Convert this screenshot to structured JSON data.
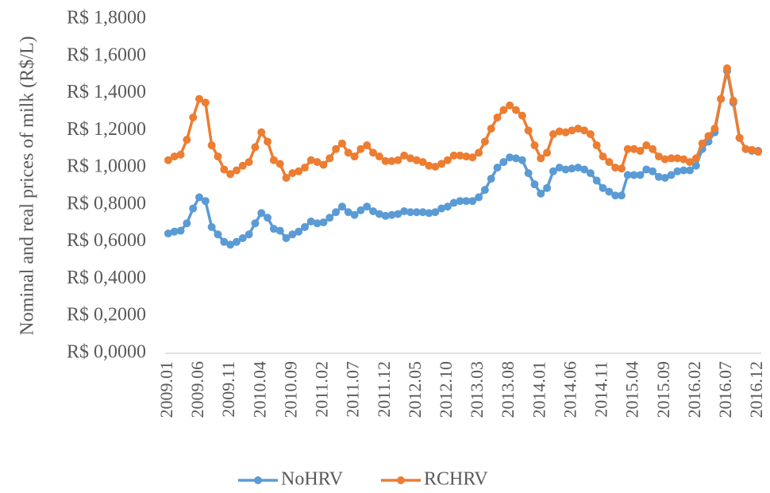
{
  "chart_data": {
    "type": "line",
    "y_label": "Nominal and real prices of milk (R$/L)",
    "categories": [
      "2009.01",
      null,
      null,
      null,
      null,
      "2009.06",
      null,
      null,
      null,
      null,
      "2009.11",
      null,
      null,
      null,
      null,
      "2010.04",
      null,
      null,
      null,
      null,
      "2010.09",
      null,
      null,
      null,
      null,
      "2011.02",
      null,
      null,
      null,
      null,
      "2011.07",
      null,
      null,
      null,
      null,
      "2011.12",
      null,
      null,
      null,
      null,
      "2012.05",
      null,
      null,
      null,
      null,
      "2012.10",
      null,
      null,
      null,
      null,
      "2013.03",
      null,
      null,
      null,
      null,
      "2013.08",
      null,
      null,
      null,
      null,
      "2014.01",
      null,
      null,
      null,
      null,
      "2014.06",
      null,
      null,
      null,
      null,
      "2014.11",
      null,
      null,
      null,
      null,
      "2015.04",
      null,
      null,
      null,
      null,
      "2015.09",
      null,
      null,
      null,
      null,
      "2016.02",
      null,
      null,
      null,
      null,
      "2016.07",
      null,
      null,
      null,
      null,
      "2016.12"
    ],
    "series": [
      {
        "name": "NoHRV",
        "color": "#5b9bd5",
        "values": [
          0.645,
          0.655,
          0.66,
          0.7,
          0.78,
          0.84,
          0.82,
          0.68,
          0.64,
          0.6,
          0.585,
          0.6,
          0.62,
          0.64,
          0.7,
          0.755,
          0.73,
          0.67,
          0.66,
          0.62,
          0.64,
          0.655,
          0.68,
          0.71,
          0.7,
          0.705,
          0.73,
          0.76,
          0.79,
          0.76,
          0.745,
          0.77,
          0.79,
          0.765,
          0.75,
          0.74,
          0.745,
          0.75,
          0.765,
          0.76,
          0.76,
          0.76,
          0.755,
          0.76,
          0.78,
          0.79,
          0.81,
          0.82,
          0.82,
          0.82,
          0.84,
          0.88,
          0.94,
          1.0,
          1.03,
          1.055,
          1.05,
          1.04,
          0.97,
          0.91,
          0.86,
          0.89,
          0.98,
          1.0,
          0.99,
          0.995,
          1.0,
          0.99,
          0.97,
          0.93,
          0.89,
          0.87,
          0.85,
          0.85,
          0.96,
          0.96,
          0.96,
          0.99,
          0.98,
          0.95,
          0.945,
          0.96,
          0.98,
          0.985,
          0.985,
          1.01,
          1.1,
          1.14,
          1.19,
          1.37,
          1.52,
          1.35,
          1.16,
          1.1,
          1.09,
          1.09
        ]
      },
      {
        "name": "RCHRV",
        "color": "#ed7d31",
        "values": [
          1.04,
          1.06,
          1.07,
          1.15,
          1.27,
          1.37,
          1.35,
          1.12,
          1.06,
          0.99,
          0.965,
          0.985,
          1.01,
          1.03,
          1.11,
          1.19,
          1.14,
          1.04,
          1.02,
          0.945,
          0.97,
          0.98,
          1.0,
          1.04,
          1.03,
          1.015,
          1.05,
          1.1,
          1.13,
          1.08,
          1.06,
          1.1,
          1.12,
          1.08,
          1.06,
          1.035,
          1.035,
          1.04,
          1.065,
          1.05,
          1.04,
          1.03,
          1.01,
          1.005,
          1.02,
          1.04,
          1.065,
          1.065,
          1.06,
          1.055,
          1.08,
          1.14,
          1.21,
          1.27,
          1.31,
          1.335,
          1.31,
          1.28,
          1.2,
          1.12,
          1.05,
          1.08,
          1.18,
          1.195,
          1.19,
          1.2,
          1.21,
          1.2,
          1.18,
          1.12,
          1.06,
          1.03,
          1.0,
          0.995,
          1.1,
          1.1,
          1.09,
          1.12,
          1.1,
          1.06,
          1.045,
          1.05,
          1.05,
          1.045,
          1.03,
          1.05,
          1.13,
          1.17,
          1.21,
          1.37,
          1.535,
          1.36,
          1.16,
          1.1,
          1.095,
          1.085
        ]
      }
    ],
    "ylim": [
      0,
      1.8
    ],
    "yticks": [
      {
        "value": 0,
        "label": "R$ 0,0000"
      },
      {
        "value": 0.2,
        "label": "R$ 0,2000"
      },
      {
        "value": 0.4,
        "label": "R$ 0,4000"
      },
      {
        "value": 0.6,
        "label": "R$ 0,6000"
      },
      {
        "value": 0.8,
        "label": "R$ 0,8000"
      },
      {
        "value": 1,
        "label": "R$ 1,0000"
      },
      {
        "value": 1.2,
        "label": "R$ 1,2000"
      },
      {
        "value": 1.4,
        "label": "R$ 1,4000"
      },
      {
        "value": 1.6,
        "label": "R$ 1,6000"
      },
      {
        "value": 1.8,
        "label": "R$ 1,8000"
      }
    ],
    "grid": false,
    "legend": "bottom",
    "markers": true
  }
}
